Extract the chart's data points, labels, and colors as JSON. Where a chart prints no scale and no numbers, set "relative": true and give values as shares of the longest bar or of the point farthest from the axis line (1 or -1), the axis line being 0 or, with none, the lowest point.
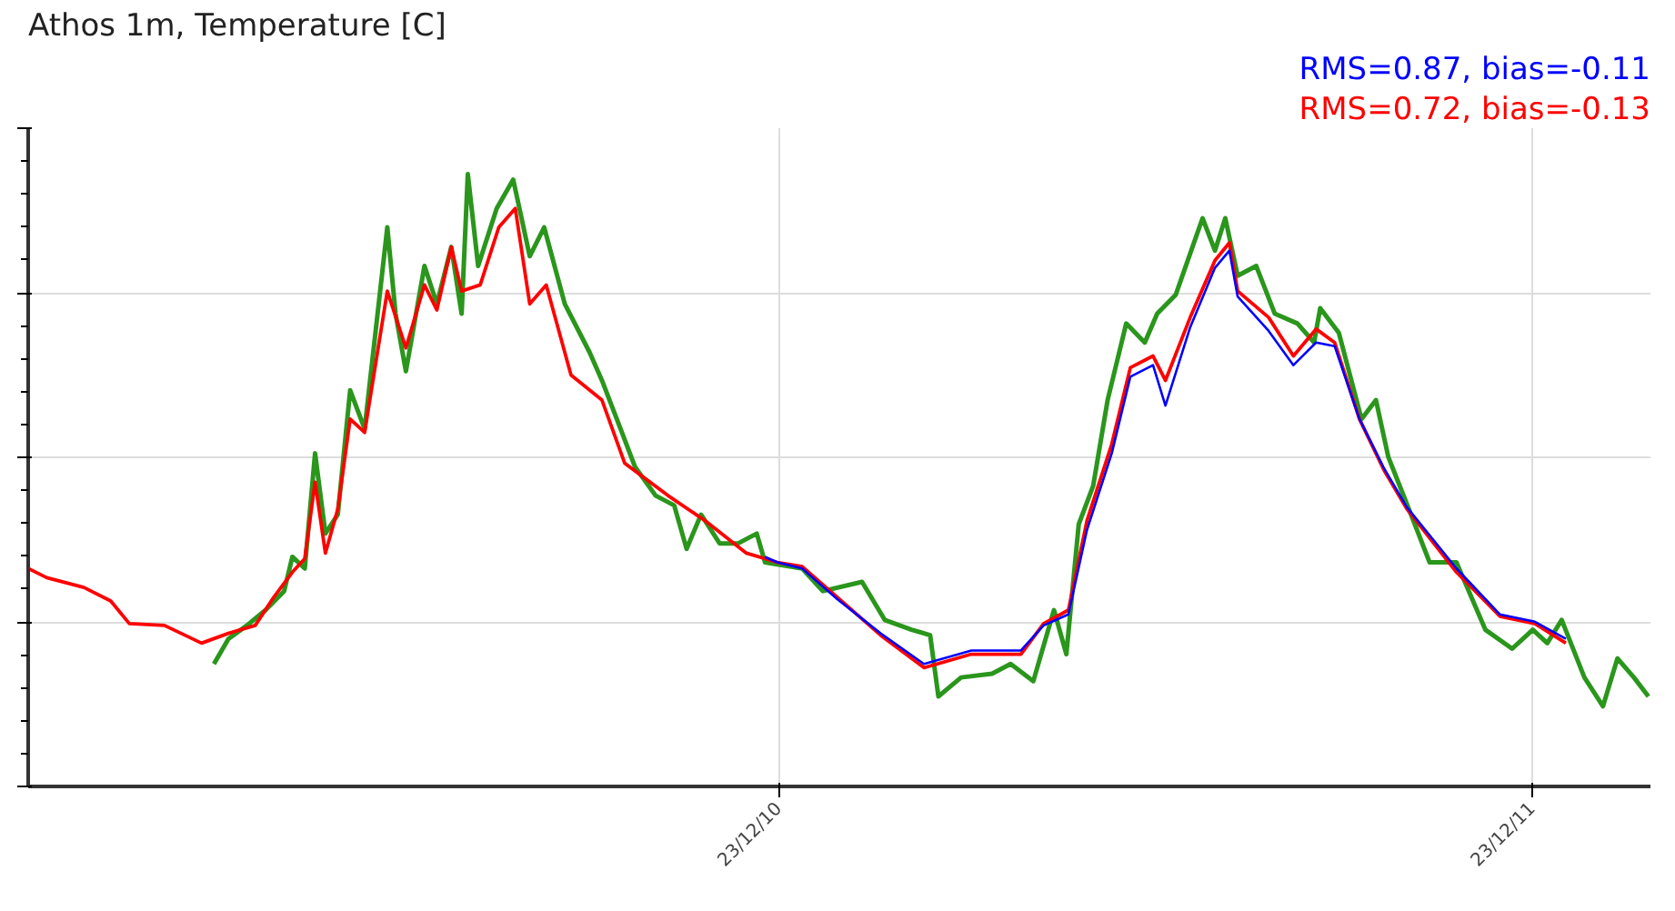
{
  "chart_data": {
    "type": "line",
    "title": "Athos 1m, Temperature [C]",
    "relative": true,
    "grid": true,
    "line_style": "solid",
    "marker": "none",
    "xlim": [
      "2009-12-24",
      "2012-02-18"
    ],
    "xticks": [
      {
        "value": "2010-12-23",
        "label": "23/12/10"
      },
      {
        "value": "2011-12-23",
        "label": "23/12/11"
      }
    ],
    "annotations": [
      "RMS=0.87, bias=-0.11",
      "RMS=0.72, bias=-0.13"
    ],
    "series": [
      {
        "color": "#0000ff",
        "x": [
          "2010-12-16",
          "2010-12-22",
          "2011-01-03",
          "2011-01-20",
          "2011-02-10",
          "2011-03-03",
          "2011-03-26",
          "2011-04-19",
          "2011-04-30",
          "2011-05-12",
          "2011-05-21",
          "2011-06-02",
          "2011-06-11",
          "2011-06-22",
          "2011-06-28",
          "2011-07-10",
          "2011-07-22",
          "2011-07-29",
          "2011-08-02",
          "2011-08-17",
          "2011-08-29",
          "2011-09-09",
          "2011-09-18",
          "2011-09-30",
          "2011-10-12",
          "2011-10-23",
          "2011-11-16",
          "2011-12-07",
          "2011-12-24",
          "2012-01-08"
        ],
        "values": [
          0.375,
          0.366,
          0.356,
          0.306,
          0.25,
          0.2,
          0.222,
          0.222,
          0.263,
          0.281,
          0.419,
          0.544,
          0.669,
          0.688,
          0.622,
          0.75,
          0.847,
          0.875,
          0.8,
          0.744,
          0.688,
          0.725,
          0.719,
          0.6,
          0.519,
          0.456,
          0.356,
          0.281,
          0.269,
          0.241
        ]
      },
      {
        "color": "#ff0000",
        "x": [
          "2009-12-24",
          "2010-01-02",
          "2010-01-20",
          "2010-02-02",
          "2010-02-11",
          "2010-02-28",
          "2010-03-18",
          "2010-03-31",
          "2010-04-13",
          "2010-04-22",
          "2010-05-01",
          "2010-05-07",
          "2010-05-12",
          "2010-05-17",
          "2010-05-23",
          "2010-05-29",
          "2010-06-05",
          "2010-06-16",
          "2010-06-25",
          "2010-07-04",
          "2010-07-10",
          "2010-07-17",
          "2010-07-22",
          "2010-07-31",
          "2010-08-09",
          "2010-08-17",
          "2010-08-24",
          "2010-09-01",
          "2010-09-13",
          "2010-09-28",
          "2010-10-09",
          "2010-10-30",
          "2010-11-17",
          "2010-12-07",
          "2010-12-22",
          "2011-01-03",
          "2011-01-20",
          "2011-02-10",
          "2011-03-03",
          "2011-03-26",
          "2011-04-19",
          "2011-04-30",
          "2011-05-12",
          "2011-05-21",
          "2011-06-02",
          "2011-06-11",
          "2011-06-22",
          "2011-06-28",
          "2011-07-10",
          "2011-07-22",
          "2011-07-29",
          "2011-08-02",
          "2011-08-17",
          "2011-08-29",
          "2011-09-09",
          "2011-09-18",
          "2011-09-30",
          "2011-10-12",
          "2011-10-23",
          "2011-11-16",
          "2011-12-07",
          "2011-12-24",
          "2012-01-08"
        ],
        "values": [
          0.356,
          0.341,
          0.325,
          0.303,
          0.266,
          0.263,
          0.234,
          0.25,
          0.263,
          0.309,
          0.35,
          0.372,
          0.497,
          0.381,
          0.453,
          0.6,
          0.578,
          0.809,
          0.716,
          0.819,
          0.778,
          0.881,
          0.809,
          0.819,
          0.913,
          0.944,
          0.788,
          0.819,
          0.672,
          0.631,
          0.528,
          0.475,
          0.434,
          0.381,
          0.366,
          0.359,
          0.309,
          0.247,
          0.194,
          0.216,
          0.216,
          0.266,
          0.288,
          0.434,
          0.559,
          0.684,
          0.703,
          0.663,
          0.766,
          0.859,
          0.888,
          0.809,
          0.766,
          0.703,
          0.747,
          0.725,
          0.6,
          0.516,
          0.453,
          0.35,
          0.278,
          0.266,
          0.234
        ]
      },
      {
        "color": "#2a961c",
        "x": [
          "2010-03-24",
          "2010-03-31",
          "2010-04-09",
          "2010-04-18",
          "2010-04-27",
          "2010-05-01",
          "2010-05-07",
          "2010-05-12",
          "2010-05-17",
          "2010-05-23",
          "2010-05-29",
          "2010-06-05",
          "2010-06-16",
          "2010-06-20",
          "2010-06-25",
          "2010-07-04",
          "2010-07-10",
          "2010-07-17",
          "2010-07-22",
          "2010-07-25",
          "2010-07-30",
          "2010-08-08",
          "2010-08-16",
          "2010-08-24",
          "2010-08-31",
          "2010-09-10",
          "2010-09-22",
          "2010-09-28",
          "2010-10-07",
          "2010-10-14",
          "2010-10-24",
          "2010-11-02",
          "2010-11-08",
          "2010-11-15",
          "2010-11-24",
          "2010-12-03",
          "2010-12-12",
          "2010-12-16",
          "2011-01-03",
          "2011-01-13",
          "2011-02-01",
          "2011-02-12",
          "2011-02-25",
          "2011-03-06",
          "2011-03-10",
          "2011-03-21",
          "2011-04-05",
          "2011-04-14",
          "2011-04-25",
          "2011-05-05",
          "2011-05-11",
          "2011-05-17",
          "2011-05-24",
          "2011-05-31",
          "2011-06-09",
          "2011-06-18",
          "2011-06-24",
          "2011-07-03",
          "2011-07-16",
          "2011-07-22",
          "2011-07-27",
          "2011-08-02",
          "2011-08-11",
          "2011-08-20",
          "2011-08-31",
          "2011-09-08",
          "2011-09-11",
          "2011-09-20",
          "2011-10-01",
          "2011-10-08",
          "2011-10-14",
          "2011-10-25",
          "2011-11-03",
          "2011-11-16",
          "2011-11-30",
          "2011-12-13",
          "2011-12-23",
          "2011-12-30",
          "2012-01-06",
          "2012-01-17",
          "2012-01-26",
          "2012-02-02",
          "2012-02-10",
          "2012-02-17"
        ],
        "values": [
          0.2,
          0.241,
          0.263,
          0.288,
          0.319,
          0.375,
          0.356,
          0.544,
          0.413,
          0.444,
          0.647,
          0.584,
          0.913,
          0.772,
          0.678,
          0.85,
          0.788,
          0.881,
          0.772,
          1.0,
          0.85,
          0.944,
          0.991,
          0.866,
          0.913,
          0.788,
          0.709,
          0.663,
          0.584,
          0.522,
          0.475,
          0.459,
          0.388,
          0.444,
          0.397,
          0.397,
          0.413,
          0.366,
          0.356,
          0.319,
          0.334,
          0.272,
          0.256,
          0.247,
          0.147,
          0.178,
          0.184,
          0.2,
          0.172,
          0.288,
          0.216,
          0.428,
          0.491,
          0.631,
          0.756,
          0.725,
          0.772,
          0.803,
          0.928,
          0.875,
          0.928,
          0.834,
          0.85,
          0.772,
          0.756,
          0.725,
          0.781,
          0.741,
          0.6,
          0.631,
          0.538,
          0.444,
          0.366,
          0.366,
          0.256,
          0.225,
          0.256,
          0.234,
          0.272,
          0.178,
          0.131,
          0.209,
          0.178,
          0.147
        ]
      }
    ]
  }
}
